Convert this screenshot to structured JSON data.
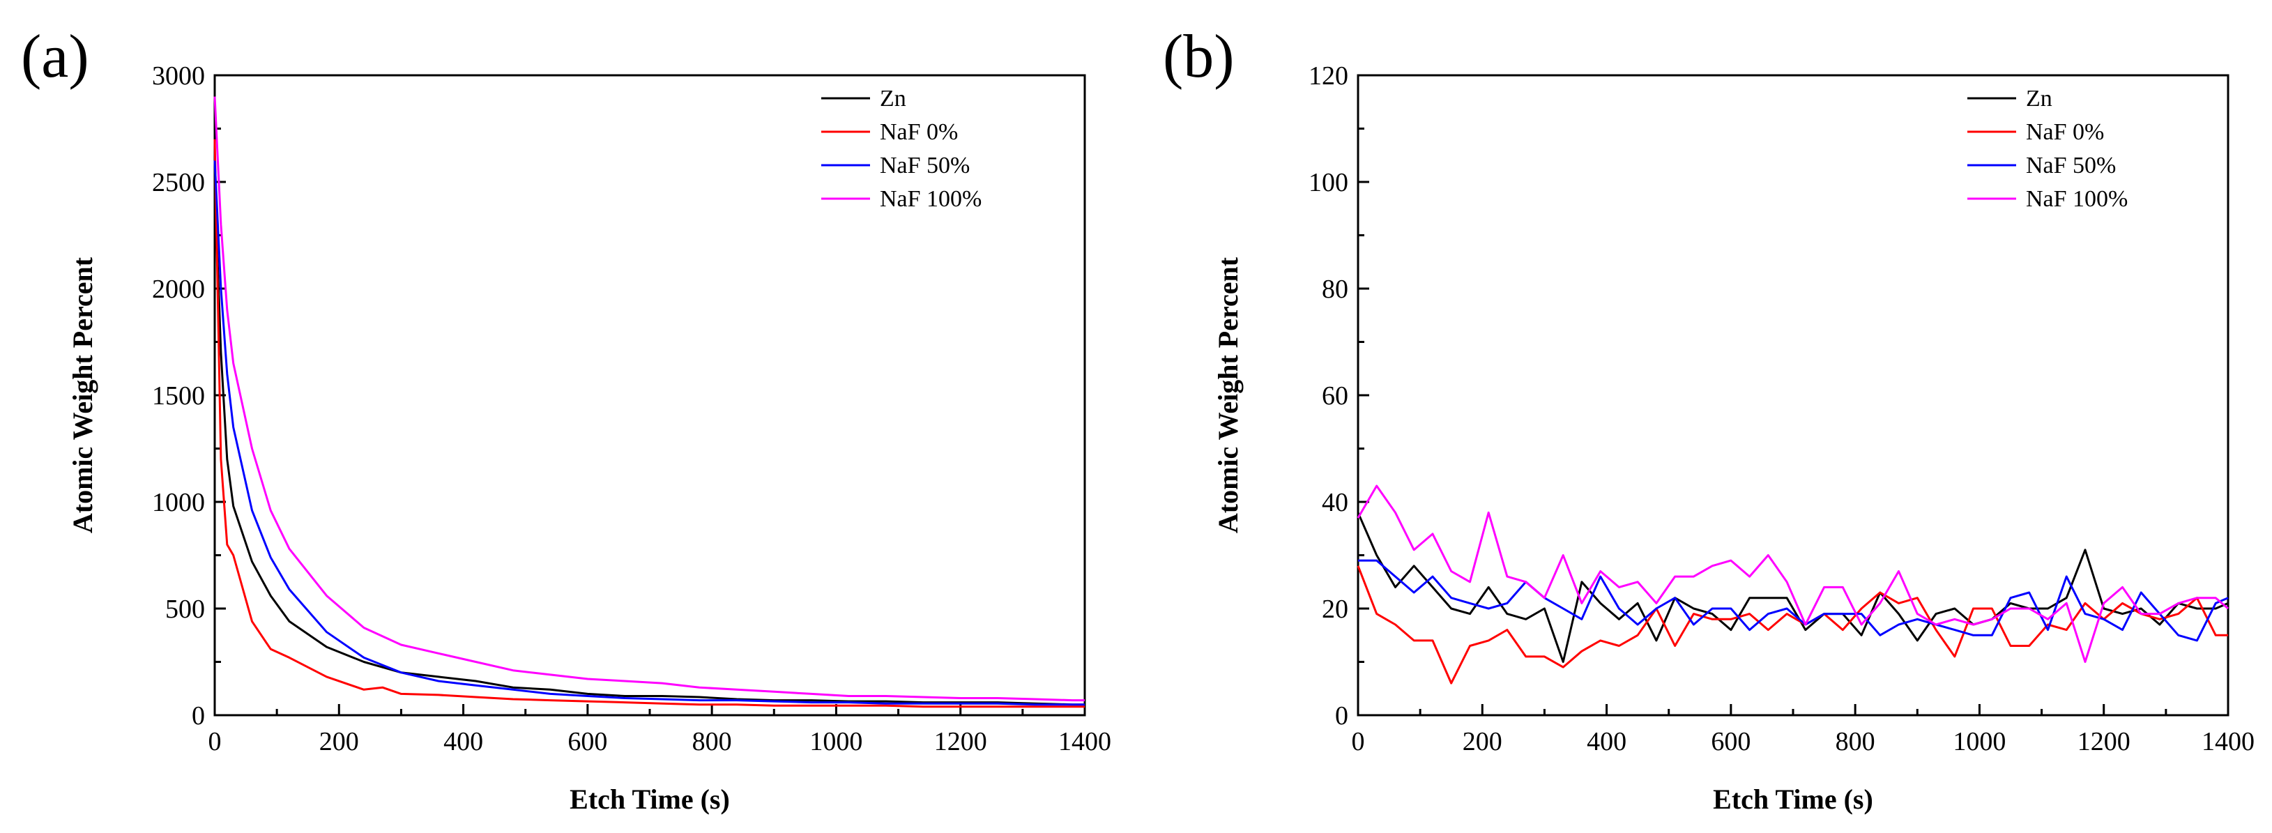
{
  "chart_data": [
    {
      "type": "line",
      "panel_label": "(a)",
      "title": "",
      "xlabel": "Etch Time (s)",
      "ylabel": "Atomic Weight Percent",
      "xlim": [
        0,
        1400
      ],
      "ylim": [
        0,
        3000
      ],
      "xticks": [
        0,
        200,
        400,
        600,
        800,
        1000,
        1200,
        1400
      ],
      "yticks": [
        0,
        500,
        1000,
        1500,
        2000,
        2500,
        3000
      ],
      "legend_position": "top-right",
      "series": [
        {
          "name": "Zn",
          "color": "#000000",
          "x": [
            0,
            10,
            20,
            30,
            60,
            90,
            120,
            180,
            240,
            300,
            360,
            420,
            480,
            540,
            600,
            660,
            720,
            780,
            840,
            900,
            960,
            1020,
            1080,
            1140,
            1200,
            1260,
            1320,
            1380,
            1400
          ],
          "y": [
            2500,
            1700,
            1200,
            980,
            720,
            560,
            440,
            320,
            250,
            200,
            180,
            160,
            130,
            120,
            100,
            90,
            90,
            85,
            75,
            70,
            70,
            65,
            65,
            60,
            60,
            60,
            55,
            50,
            50
          ]
        },
        {
          "name": "NaF 0%",
          "color": "#ff0000",
          "x": [
            0,
            10,
            20,
            30,
            60,
            90,
            120,
            180,
            240,
            270,
            300,
            360,
            420,
            480,
            540,
            600,
            660,
            720,
            780,
            840,
            900,
            960,
            1020,
            1080,
            1140,
            1200,
            1260,
            1320,
            1380,
            1400
          ],
          "y": [
            2700,
            1200,
            800,
            750,
            440,
            310,
            270,
            180,
            120,
            130,
            100,
            95,
            85,
            75,
            70,
            65,
            60,
            55,
            50,
            50,
            45,
            45,
            45,
            45,
            40,
            40,
            40,
            40,
            40,
            40
          ]
        },
        {
          "name": "NaF 50%",
          "color": "#0000ff",
          "x": [
            0,
            10,
            20,
            30,
            60,
            90,
            120,
            180,
            240,
            300,
            360,
            420,
            480,
            540,
            600,
            660,
            720,
            780,
            840,
            900,
            960,
            1020,
            1080,
            1140,
            1200,
            1260,
            1320,
            1380,
            1400
          ],
          "y": [
            2600,
            2000,
            1600,
            1350,
            960,
            740,
            590,
            390,
            270,
            200,
            160,
            140,
            120,
            100,
            90,
            80,
            75,
            70,
            70,
            65,
            60,
            60,
            55,
            55,
            55,
            55,
            50,
            50,
            50
          ]
        },
        {
          "name": "NaF 100%",
          "color": "#ff00ff",
          "x": [
            0,
            10,
            20,
            30,
            60,
            90,
            120,
            180,
            240,
            300,
            360,
            420,
            480,
            540,
            600,
            660,
            720,
            780,
            840,
            900,
            960,
            1020,
            1080,
            1140,
            1200,
            1260,
            1320,
            1380,
            1400
          ],
          "y": [
            2900,
            2300,
            1900,
            1650,
            1250,
            960,
            780,
            560,
            410,
            330,
            290,
            250,
            210,
            190,
            170,
            160,
            150,
            130,
            120,
            110,
            100,
            90,
            90,
            85,
            80,
            80,
            75,
            70,
            70
          ]
        }
      ]
    },
    {
      "type": "line",
      "panel_label": "(b)",
      "title": "",
      "xlabel": "Etch Time (s)",
      "ylabel": "Atomic Weight Percent",
      "xlim": [
        0,
        1400
      ],
      "ylim": [
        0,
        120
      ],
      "xticks": [
        0,
        200,
        400,
        600,
        800,
        1000,
        1200,
        1400
      ],
      "yticks": [
        0,
        20,
        40,
        60,
        80,
        100,
        120
      ],
      "legend_position": "top-right",
      "series": [
        {
          "name": "Zn",
          "color": "#000000",
          "x": [
            0,
            30,
            60,
            90,
            120,
            150,
            180,
            210,
            240,
            270,
            300,
            330,
            360,
            390,
            420,
            450,
            480,
            510,
            540,
            570,
            600,
            630,
            660,
            690,
            720,
            750,
            780,
            810,
            840,
            870,
            900,
            930,
            960,
            990,
            1020,
            1050,
            1080,
            1110,
            1140,
            1170,
            1200,
            1230,
            1260,
            1290,
            1320,
            1350,
            1380,
            1400
          ],
          "y": [
            38,
            30,
            24,
            28,
            24,
            20,
            19,
            24,
            19,
            18,
            20,
            10,
            25,
            21,
            18,
            21,
            14,
            22,
            20,
            19,
            16,
            22,
            22,
            22,
            16,
            19,
            19,
            15,
            23,
            19,
            14,
            19,
            20,
            17,
            18,
            21,
            20,
            20,
            22,
            31,
            20,
            19,
            20,
            17,
            21,
            20,
            20,
            21
          ]
        },
        {
          "name": "NaF 0%",
          "color": "#ff0000",
          "x": [
            0,
            30,
            60,
            90,
            120,
            150,
            180,
            210,
            240,
            270,
            300,
            330,
            360,
            390,
            420,
            450,
            480,
            510,
            540,
            570,
            600,
            630,
            660,
            690,
            720,
            750,
            780,
            810,
            840,
            870,
            900,
            930,
            960,
            990,
            1020,
            1050,
            1080,
            1110,
            1140,
            1170,
            1200,
            1230,
            1260,
            1290,
            1320,
            1350,
            1380,
            1400
          ],
          "y": [
            28,
            19,
            17,
            14,
            14,
            6,
            13,
            14,
            16,
            11,
            11,
            9,
            12,
            14,
            13,
            15,
            20,
            13,
            19,
            18,
            18,
            19,
            16,
            19,
            17,
            19,
            16,
            20,
            23,
            21,
            22,
            16,
            11,
            20,
            20,
            13,
            13,
            17,
            16,
            21,
            18,
            21,
            19,
            18,
            19,
            22,
            15,
            15
          ]
        },
        {
          "name": "NaF 50%",
          "color": "#0000ff",
          "x": [
            0,
            30,
            60,
            90,
            120,
            150,
            180,
            210,
            240,
            270,
            300,
            330,
            360,
            390,
            420,
            450,
            480,
            510,
            540,
            570,
            600,
            630,
            660,
            690,
            720,
            750,
            780,
            810,
            840,
            870,
            900,
            930,
            960,
            990,
            1020,
            1050,
            1080,
            1110,
            1140,
            1170,
            1200,
            1230,
            1260,
            1290,
            1320,
            1350,
            1380,
            1400
          ],
          "y": [
            29,
            29,
            26,
            23,
            26,
            22,
            21,
            20,
            21,
            25,
            22,
            20,
            18,
            26,
            20,
            17,
            20,
            22,
            17,
            20,
            20,
            16,
            19,
            20,
            17,
            19,
            19,
            19,
            15,
            17,
            18,
            17,
            16,
            15,
            15,
            22,
            23,
            16,
            26,
            19,
            18,
            16,
            23,
            19,
            15,
            14,
            21,
            22
          ]
        },
        {
          "name": "NaF 100%",
          "color": "#ff00ff",
          "x": [
            0,
            30,
            60,
            90,
            120,
            150,
            180,
            210,
            240,
            270,
            300,
            330,
            360,
            390,
            420,
            450,
            480,
            510,
            540,
            570,
            600,
            630,
            660,
            690,
            720,
            750,
            780,
            810,
            840,
            870,
            900,
            930,
            960,
            990,
            1020,
            1050,
            1080,
            1110,
            1140,
            1170,
            1200,
            1230,
            1260,
            1290,
            1320,
            1350,
            1380,
            1400
          ],
          "y": [
            37,
            43,
            38,
            31,
            34,
            27,
            25,
            38,
            26,
            25,
            22,
            30,
            21,
            27,
            24,
            25,
            21,
            26,
            26,
            28,
            29,
            26,
            30,
            25,
            17,
            24,
            24,
            17,
            21,
            27,
            19,
            17,
            18,
            17,
            18,
            20,
            20,
            18,
            21,
            10,
            21,
            24,
            19,
            19,
            21,
            22,
            22,
            20
          ]
        }
      ]
    }
  ]
}
